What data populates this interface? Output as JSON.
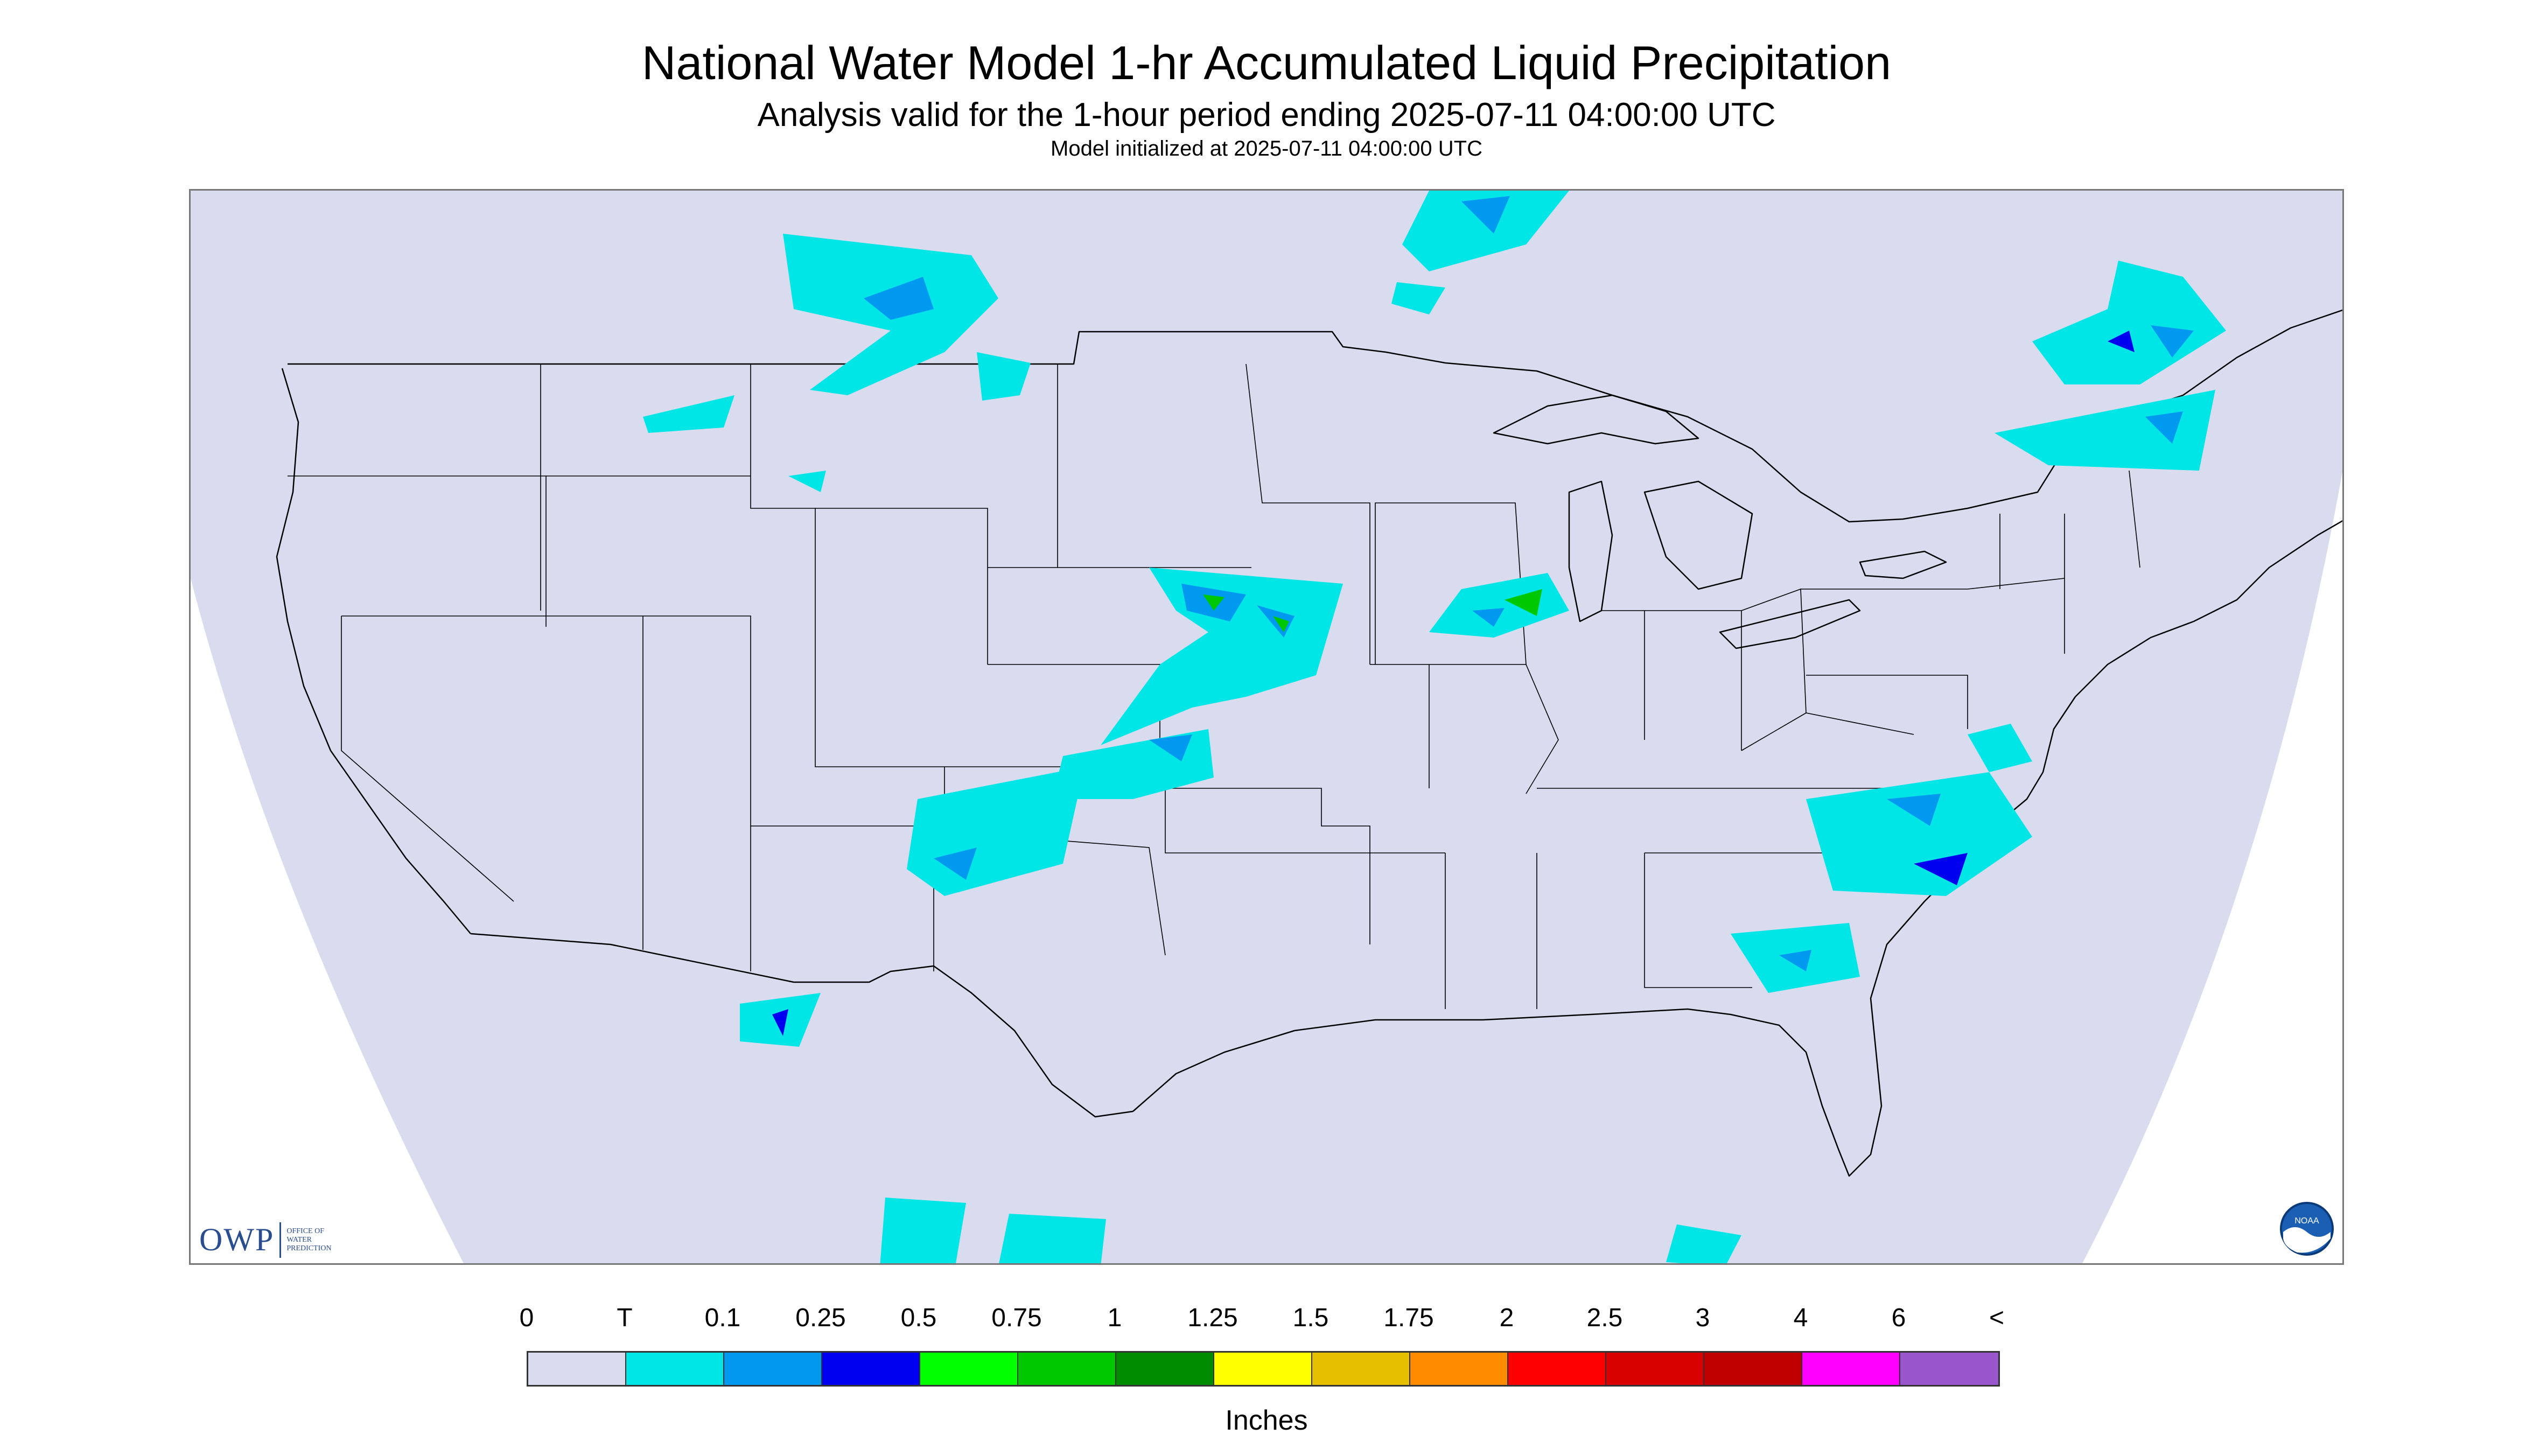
{
  "title": "National Water Model 1-hr Accumulated Liquid Precipitation",
  "subtitle": "Analysis valid for the 1-hour period ending 2025-07-11 04:00:00 UTC",
  "init_line": "Model initialized at 2025-07-11 04:00:00 UTC",
  "logo_owp": {
    "mark": "OWP",
    "text_lines": [
      "OFFICE OF",
      "WATER",
      "PREDICTION"
    ]
  },
  "logo_noaa": "NOAA",
  "map": {
    "background_color": "#d9dcef",
    "outside_projection_color": "#ffffff",
    "boundary_color": "#000000"
  },
  "legend": {
    "tick_labels": [
      "0",
      "T",
      "0.1",
      "0.25",
      "0.5",
      "0.75",
      "1",
      "1.25",
      "1.5",
      "1.75",
      "2",
      "2.5",
      "3",
      "4",
      "6",
      "<"
    ],
    "colors": [
      "#d9dcef",
      "#00e5e5",
      "#0099f0",
      "#0000f0",
      "#00ff00",
      "#00c800",
      "#008c00",
      "#ffff00",
      "#e5bf00",
      "#ff8c00",
      "#ff0000",
      "#d90000",
      "#c00000",
      "#ff00ff",
      "#9955cc"
    ],
    "units": "Inches"
  }
}
